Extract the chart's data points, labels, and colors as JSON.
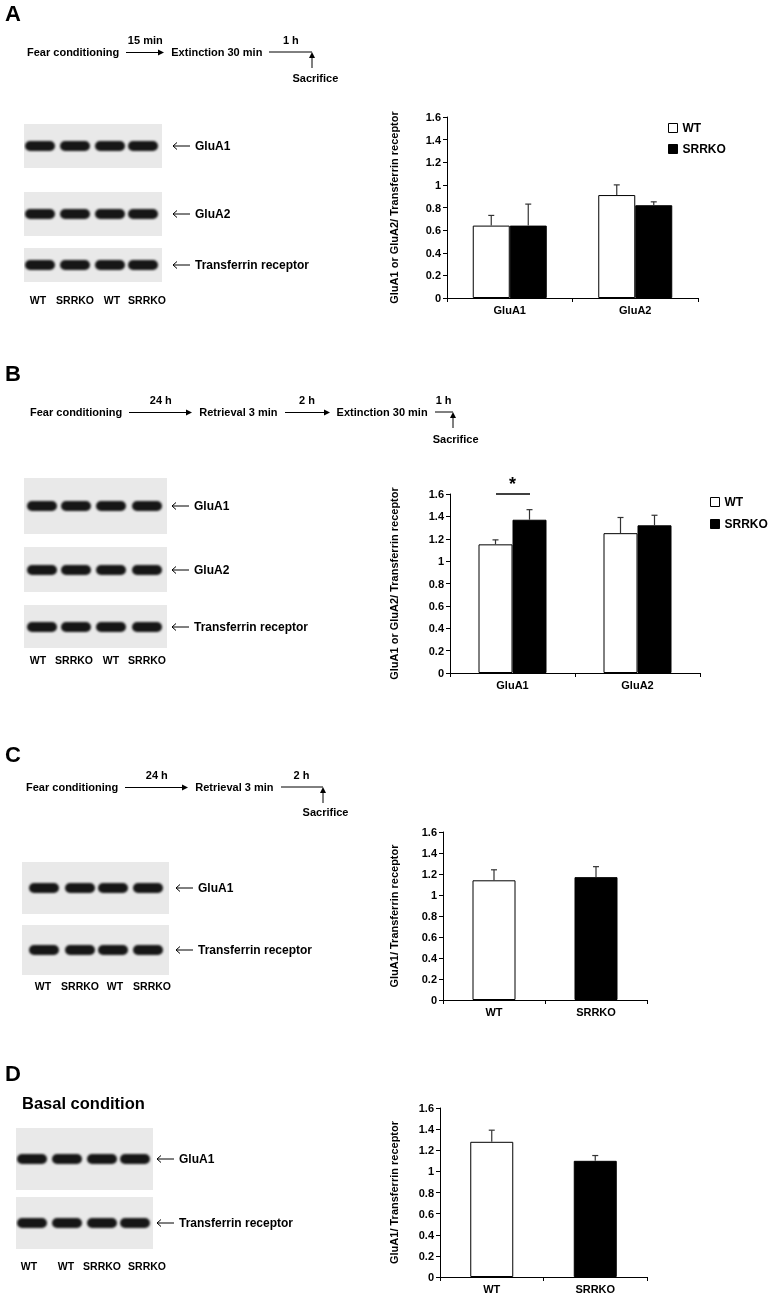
{
  "chart_data": [
    {
      "type": "bar",
      "categories": [
        "GluA1",
        "GluA2"
      ],
      "series": [
        {
          "name": "WT",
          "color": "#ffffff",
          "values": [
            0.64,
            0.91
          ],
          "errors": [
            [
              0.64,
              0.73
            ],
            [
              0.91,
              1.0
            ]
          ]
        },
        {
          "name": "SRRKO",
          "color": "#000000",
          "values": [
            0.64,
            0.82
          ],
          "errors": [
            [
              0.64,
              0.83
            ],
            [
              0.82,
              0.85
            ]
          ]
        }
      ],
      "ylabel": "GluA1 or GluA2/ Transferrin receptor",
      "ylim": [
        0,
        1.6
      ],
      "yticks": [
        0,
        0.2,
        0.4,
        0.6,
        0.8,
        1,
        1.2,
        1.4,
        1.6
      ],
      "legend": "top right",
      "annotations": [
        "A",
        "Fear conditioning",
        "15 min",
        "Extinction 30 min",
        "1 h",
        "Sacrifice",
        "GluA1",
        "GluA2",
        "Transferrin receptor",
        "WT",
        "SRRKO",
        "WT",
        "SRRKO"
      ]
    },
    {
      "type": "bar",
      "categories": [
        "GluA1",
        "GluA2"
      ],
      "series": [
        {
          "name": "WT",
          "color": "#ffffff",
          "values": [
            1.15,
            1.25
          ],
          "errors": [
            [
              1.15,
              1.19
            ],
            [
              1.25,
              1.39
            ]
          ]
        },
        {
          "name": "SRRKO",
          "color": "#000000",
          "values": [
            1.37,
            1.32
          ],
          "errors": [
            [
              1.37,
              1.46
            ],
            [
              1.32,
              1.41
            ]
          ]
        }
      ],
      "ylabel": "GluA1 or GluA2/ Transferrin receptor",
      "ylim": [
        0,
        1.6
      ],
      "yticks": [
        0,
        0.2,
        0.4,
        0.6,
        0.8,
        1,
        1.2,
        1.4,
        1.6
      ],
      "legend": "top right",
      "annotations": [
        "B",
        "Fear conditioning",
        "24 h",
        "Retrieval 3 min",
        "2 h",
        "Extinction 30 min",
        "1 h",
        "Sacrifice",
        "GluA1",
        "GluA2",
        "Transferrin receptor",
        "WT",
        "SRRKO",
        "WT",
        "SRRKO",
        "*"
      ]
    },
    {
      "type": "bar",
      "categories": [
        "WT",
        "SRRKO"
      ],
      "values": [
        1.14,
        1.17
      ],
      "colors": [
        "#ffffff",
        "#000000"
      ],
      "errors": [
        [
          1.14,
          1.24
        ],
        [
          1.17,
          1.27
        ]
      ],
      "ylabel": "GluA1/ Transferrin receptor",
      "ylim": [
        0,
        1.6
      ],
      "yticks": [
        0,
        0.2,
        0.4,
        0.6,
        0.8,
        1,
        1.2,
        1.4,
        1.6
      ],
      "annotations": [
        "C",
        "Fear conditioning",
        "24 h",
        "Retrieval 3 min",
        "2 h",
        "Sacrifice",
        "GluA1",
        "Transferrin receptor",
        "WT",
        "SRRKO",
        "WT",
        "SRRKO"
      ]
    },
    {
      "type": "bar",
      "categories": [
        "WT",
        "SRRKO"
      ],
      "values": [
        1.28,
        1.1
      ],
      "colors": [
        "#ffffff",
        "#000000"
      ],
      "errors": [
        [
          1.28,
          1.39
        ],
        [
          1.1,
          1.15
        ]
      ],
      "ylabel": "GluA1/ Transferrin receptor",
      "ylim": [
        0,
        1.6
      ],
      "yticks": [
        0,
        0.2,
        0.4,
        0.6,
        0.8,
        1,
        1.2,
        1.4,
        1.6
      ],
      "annotations": [
        "D",
        "Basal condition",
        "GluA1",
        "Transferrin receptor",
        "WT",
        "WT",
        "SRRKO",
        "SRRKO"
      ]
    }
  ]
}
